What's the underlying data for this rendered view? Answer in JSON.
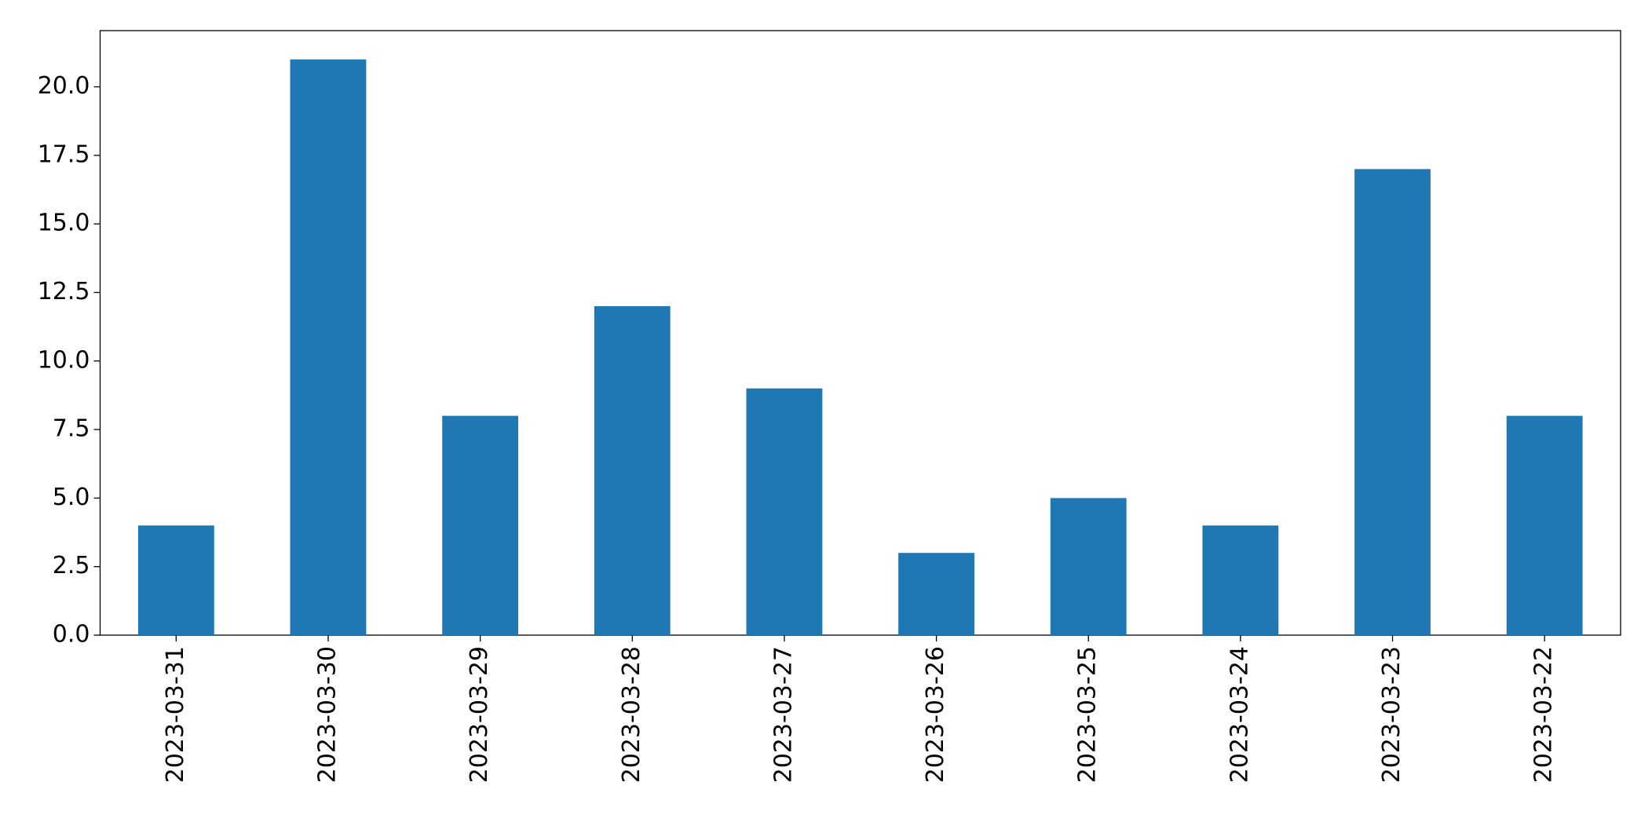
{
  "chart_data": {
    "type": "bar",
    "categories": [
      "2023-03-31",
      "2023-03-30",
      "2023-03-29",
      "2023-03-28",
      "2023-03-27",
      "2023-03-26",
      "2023-03-25",
      "2023-03-24",
      "2023-03-23",
      "2023-03-22"
    ],
    "values": [
      4,
      21,
      8,
      12,
      9,
      3,
      5,
      4,
      17,
      8
    ],
    "color": "#1f77b4",
    "ylim": [
      0,
      22.05
    ],
    "yticks": [
      {
        "value": 0,
        "label": "0.0"
      },
      2.5,
      {
        "value": 5,
        "label": "5.0"
      },
      7.5,
      {
        "value": 10,
        "label": "10.0"
      },
      12.5,
      {
        "value": 15,
        "label": "15.0"
      },
      17.5,
      {
        "value": 20,
        "label": "20.0"
      }
    ],
    "grid": false
  }
}
